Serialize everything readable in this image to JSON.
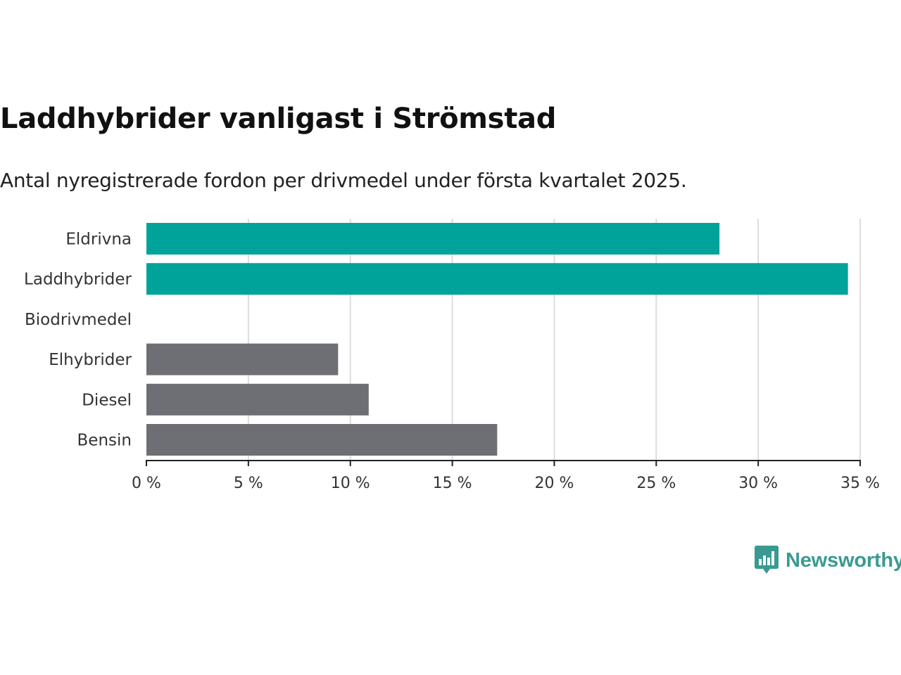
{
  "header": {
    "title": "Laddhybrider vanligast i Strömstad",
    "subtitle": "Antal nyregistrerade fordon per drivmedel under första kvartalet 2025."
  },
  "chart_data": {
    "type": "bar",
    "orientation": "horizontal",
    "categories": [
      "Eldrivna",
      "Laddhybrider",
      "Biodrivmedel",
      "Elhybrider",
      "Diesel",
      "Bensin"
    ],
    "values": [
      28.1,
      34.4,
      0,
      9.4,
      10.9,
      17.2
    ],
    "value_unit": "%",
    "xlim": [
      0,
      35
    ],
    "xticks": [
      0,
      5,
      10,
      15,
      20,
      25,
      30,
      35
    ],
    "xtick_labels": [
      "0 %",
      "5 %",
      "10 %",
      "15 %",
      "20 %",
      "25 %",
      "30 %",
      "35 %"
    ],
    "grid": "vertical",
    "bar_colors": [
      "#00a39a",
      "#00a39a",
      "#00a39a",
      "#6e6e75",
      "#6e6e75",
      "#6e6e75"
    ]
  },
  "brand": {
    "name": "Newsworthy",
    "icon": "newsworthy-chart-bubble-icon",
    "color": "#3a9a91"
  }
}
